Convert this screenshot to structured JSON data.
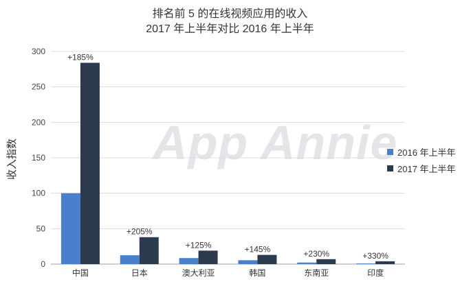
{
  "chart_data": {
    "type": "bar",
    "title": "排名前 5 的在线视频应用的收入",
    "subtitle": "2017 年上半年对比 2016 年上半年",
    "ylabel": "收入指数",
    "xlabel": "",
    "ylim": [
      0,
      300
    ],
    "yticks": [
      0,
      50,
      100,
      150,
      200,
      250,
      300
    ],
    "categories": [
      "中国",
      "日本",
      "澳大利亚",
      "韩国",
      "东南亚",
      "印度"
    ],
    "series": [
      {
        "name": "2016 年上半年",
        "color": "#4a7fcb",
        "values": [
          100,
          12.5,
          8.5,
          5.5,
          2.2,
          0.9
        ]
      },
      {
        "name": "2017 年上半年",
        "color": "#2c3a4e",
        "values": [
          284,
          38,
          19,
          13,
          7,
          4
        ]
      }
    ],
    "annotations": [
      "+185%",
      "+205%",
      "+125%",
      "+145%",
      "+230%",
      "+330%"
    ],
    "grid": true,
    "legend_position": "right",
    "watermark": "App Annie"
  }
}
